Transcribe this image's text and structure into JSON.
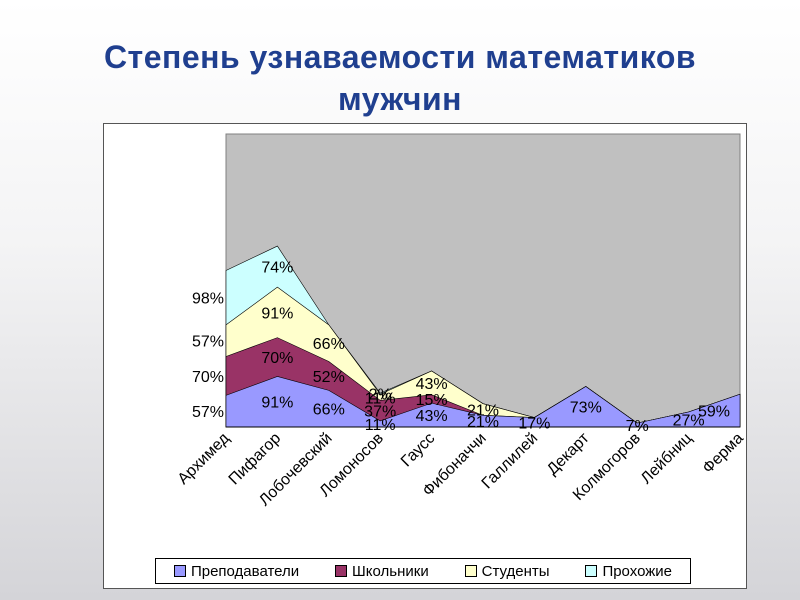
{
  "title": {
    "line1": "Степень узнаваемости математиков",
    "line2": "мужчин"
  },
  "chart_data": {
    "type": "area",
    "stacked": true,
    "categories": [
      "Архимед",
      "Пифагор",
      "Лобочевский",
      "Ломоносов",
      "Гаусс",
      "Фибоначчи",
      "Галлилей",
      "Декарт",
      "Колмогоров",
      "Лейбниц",
      "Ферма"
    ],
    "series": [
      {
        "name": "Преподаватели",
        "color": "#9999ff",
        "values": [
          57,
          91,
          66,
          11,
          43,
          21,
          17,
          73,
          7,
          27,
          59
        ]
      },
      {
        "name": "Школьники",
        "color": "#993366",
        "values": [
          70,
          70,
          52,
          37,
          15,
          0,
          0,
          0,
          0,
          0,
          0
        ]
      },
      {
        "name": "Студенты",
        "color": "#ffffcc",
        "values": [
          57,
          91,
          66,
          11,
          43,
          21,
          0,
          0,
          0,
          0,
          0
        ]
      },
      {
        "name": "Прохожие",
        "color": "#ccffff",
        "values": [
          98,
          74,
          0,
          2,
          0,
          0,
          0,
          0,
          0,
          0,
          0
        ]
      }
    ],
    "data_labels": {
      "Преподаватели": [
        "57%",
        "91%",
        "66%",
        "11%",
        "43%",
        "21%",
        "17%",
        "73%",
        "7%",
        "27%",
        "59%"
      ],
      "Школьники": [
        "70%",
        "70%",
        "52%",
        "37%",
        "15%"
      ],
      "Студенты": [
        "57%",
        "91%",
        "66%",
        "11%",
        "43%",
        "21%"
      ],
      "Прохожие": [
        "98%",
        "74%",
        "",
        "2%"
      ]
    },
    "plot_background": "#c0c0c0",
    "legend_position": "bottom",
    "grid": false
  }
}
